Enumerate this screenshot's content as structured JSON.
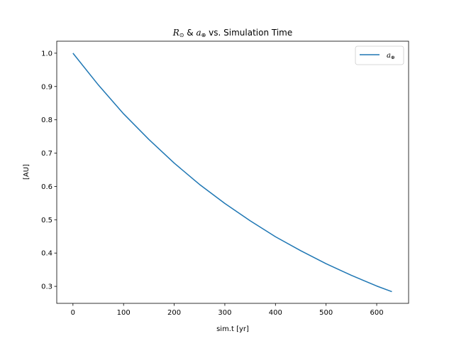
{
  "chart_data": {
    "type": "line",
    "title": "R⊙ & a⊕ vs. Simulation Time",
    "xlabel": "sim.t [yr]",
    "ylabel": "[AU]",
    "xlim": [
      -32,
      663
    ],
    "ylim": [
      0.249,
      1.036
    ],
    "xticks": [
      0,
      100,
      200,
      300,
      400,
      500,
      600
    ],
    "yticks": [
      0.3,
      0.4,
      0.5,
      0.6,
      0.7,
      0.8,
      0.9,
      1.0
    ],
    "grid": false,
    "legend_position": "top-right",
    "series": [
      {
        "name": "a⊕",
        "color": "#1f77b4",
        "x": [
          0,
          50,
          100,
          150,
          200,
          250,
          300,
          350,
          400,
          450,
          500,
          550,
          600,
          630
        ],
        "y": [
          1.0,
          0.905,
          0.818,
          0.741,
          0.67,
          0.606,
          0.549,
          0.497,
          0.449,
          0.407,
          0.368,
          0.333,
          0.301,
          0.284
        ]
      }
    ]
  }
}
